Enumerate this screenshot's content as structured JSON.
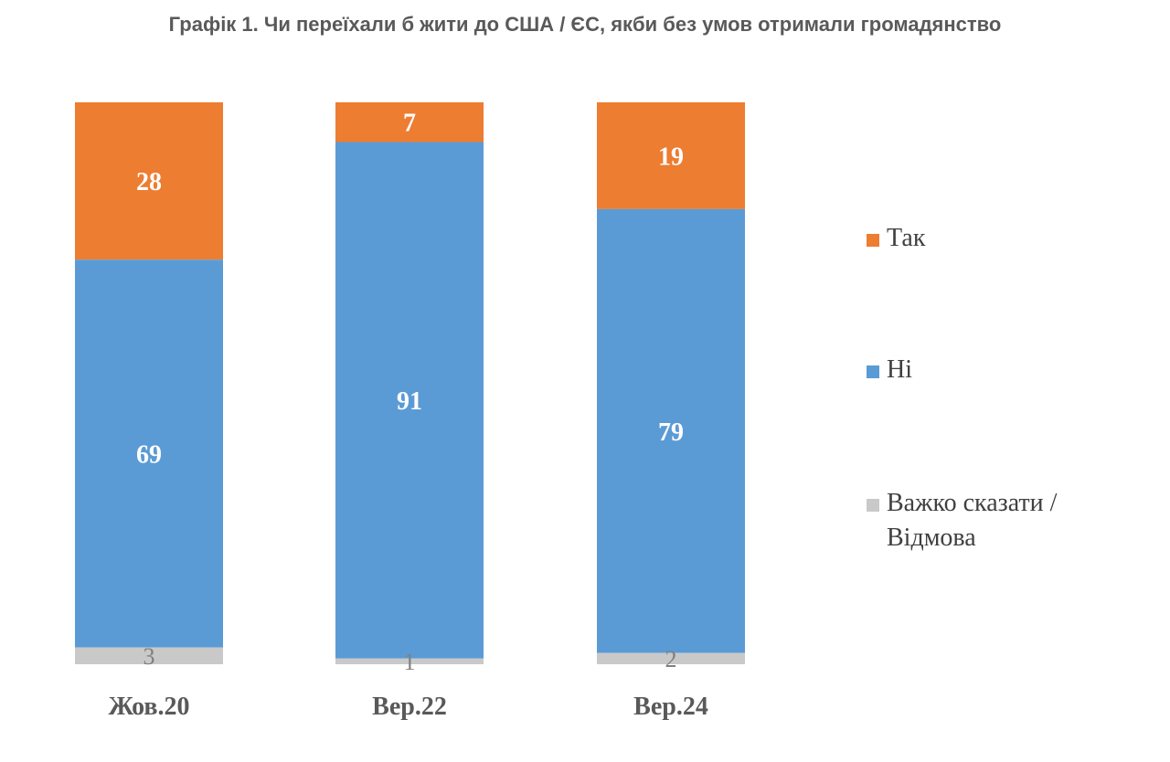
{
  "chart_data": {
    "type": "bar",
    "stacked": true,
    "percent_stacked": true,
    "title": "Графік 1. Чи переїхали б жити до США / ЄС, якби без умов отримали громадянство",
    "categories": [
      "Жов.20",
      "Вер.22",
      "Вер.24"
    ],
    "series": [
      {
        "name": "Так",
        "color": "#ed7d31",
        "values": [
          28,
          7,
          19
        ]
      },
      {
        "name": "Ні",
        "color": "#5b9bd5",
        "values": [
          69,
          91,
          79
        ]
      },
      {
        "name": "Важко сказати / Відмова",
        "color": "#c9c9c9",
        "values": [
          3,
          1,
          2
        ]
      }
    ],
    "legend": {
      "position": "right",
      "items": [
        {
          "lines": [
            "Так"
          ],
          "color": "#ed7d31"
        },
        {
          "lines": [
            "Ні"
          ],
          "color": "#5b9bd5"
        },
        {
          "lines": [
            "Важко сказати /",
            "Відмова"
          ],
          "color": "#c9c9c9"
        }
      ]
    },
    "ylim": [
      0,
      100
    ],
    "grid": false
  }
}
